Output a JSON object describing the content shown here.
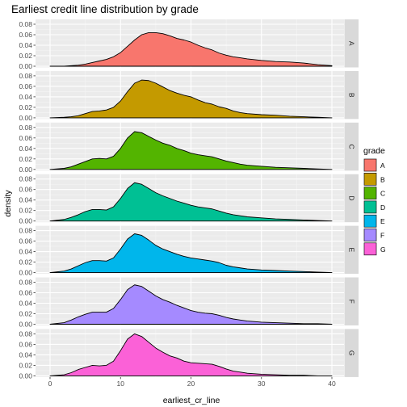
{
  "chart_data": {
    "type": "area",
    "title": "Earliest credit line distribution by grade",
    "xlabel": "earliest_cr_line",
    "ylabel": "density",
    "xlim": [
      0,
      40
    ],
    "ylim": [
      0,
      0.08
    ],
    "x_ticks": [
      "0",
      "10",
      "20",
      "30",
      "40"
    ],
    "y_ticks": [
      "0.00",
      "0.02",
      "0.04",
      "0.06",
      "0.08"
    ],
    "legend_title": "grade",
    "legend_position": "right",
    "grid": true,
    "facet": "rows by grade",
    "x": [
      0,
      2,
      3,
      4,
      5,
      6,
      7,
      8,
      9,
      10,
      11,
      12,
      13,
      14,
      15,
      16,
      17,
      18,
      19,
      20,
      21,
      22,
      23,
      24,
      25,
      26,
      27,
      28,
      30,
      32,
      34,
      36,
      38,
      40
    ],
    "series": [
      {
        "name": "A",
        "color": "#F8766D",
        "values": [
          0.0,
          0.0,
          0.001,
          0.002,
          0.004,
          0.007,
          0.01,
          0.013,
          0.018,
          0.026,
          0.038,
          0.05,
          0.06,
          0.064,
          0.064,
          0.062,
          0.058,
          0.053,
          0.05,
          0.046,
          0.04,
          0.035,
          0.031,
          0.025,
          0.021,
          0.018,
          0.016,
          0.014,
          0.011,
          0.009,
          0.008,
          0.006,
          0.003,
          0.001
        ]
      },
      {
        "name": "B",
        "color": "#C49A00",
        "values": [
          0.0,
          0.001,
          0.002,
          0.004,
          0.008,
          0.012,
          0.013,
          0.015,
          0.02,
          0.032,
          0.05,
          0.066,
          0.072,
          0.071,
          0.066,
          0.059,
          0.052,
          0.047,
          0.043,
          0.04,
          0.034,
          0.029,
          0.026,
          0.021,
          0.018,
          0.013,
          0.01,
          0.008,
          0.006,
          0.005,
          0.003,
          0.002,
          0.001,
          0.0
        ]
      },
      {
        "name": "C",
        "color": "#53B400",
        "values": [
          0.0,
          0.002,
          0.005,
          0.01,
          0.015,
          0.02,
          0.021,
          0.02,
          0.025,
          0.04,
          0.06,
          0.072,
          0.07,
          0.063,
          0.056,
          0.05,
          0.046,
          0.04,
          0.036,
          0.031,
          0.028,
          0.026,
          0.024,
          0.02,
          0.016,
          0.013,
          0.01,
          0.008,
          0.006,
          0.004,
          0.003,
          0.002,
          0.001,
          0.0
        ]
      },
      {
        "name": "D",
        "color": "#00C094",
        "values": [
          0.0,
          0.003,
          0.007,
          0.012,
          0.018,
          0.022,
          0.022,
          0.021,
          0.027,
          0.043,
          0.062,
          0.073,
          0.07,
          0.062,
          0.054,
          0.048,
          0.043,
          0.038,
          0.034,
          0.03,
          0.027,
          0.025,
          0.023,
          0.019,
          0.015,
          0.012,
          0.01,
          0.008,
          0.006,
          0.004,
          0.003,
          0.002,
          0.001,
          0.0
        ]
      },
      {
        "name": "E",
        "color": "#00B6EB",
        "values": [
          0.0,
          0.003,
          0.007,
          0.013,
          0.019,
          0.023,
          0.023,
          0.022,
          0.028,
          0.045,
          0.064,
          0.074,
          0.071,
          0.062,
          0.052,
          0.045,
          0.04,
          0.035,
          0.031,
          0.028,
          0.026,
          0.024,
          0.022,
          0.019,
          0.014,
          0.011,
          0.009,
          0.007,
          0.005,
          0.004,
          0.003,
          0.002,
          0.001,
          0.0
        ]
      },
      {
        "name": "F",
        "color": "#A58AFF",
        "values": [
          0.0,
          0.003,
          0.008,
          0.014,
          0.019,
          0.023,
          0.023,
          0.023,
          0.03,
          0.047,
          0.066,
          0.075,
          0.072,
          0.063,
          0.054,
          0.047,
          0.042,
          0.036,
          0.031,
          0.026,
          0.023,
          0.021,
          0.02,
          0.017,
          0.013,
          0.01,
          0.008,
          0.006,
          0.004,
          0.003,
          0.002,
          0.001,
          0.001,
          0.0
        ]
      },
      {
        "name": "G",
        "color": "#FB61D7",
        "values": [
          0.0,
          0.002,
          0.006,
          0.012,
          0.016,
          0.02,
          0.019,
          0.02,
          0.028,
          0.048,
          0.07,
          0.08,
          0.075,
          0.064,
          0.053,
          0.045,
          0.038,
          0.034,
          0.028,
          0.025,
          0.024,
          0.023,
          0.022,
          0.018,
          0.013,
          0.009,
          0.007,
          0.005,
          0.003,
          0.002,
          0.001,
          0.001,
          0.0,
          0.0
        ]
      }
    ]
  }
}
